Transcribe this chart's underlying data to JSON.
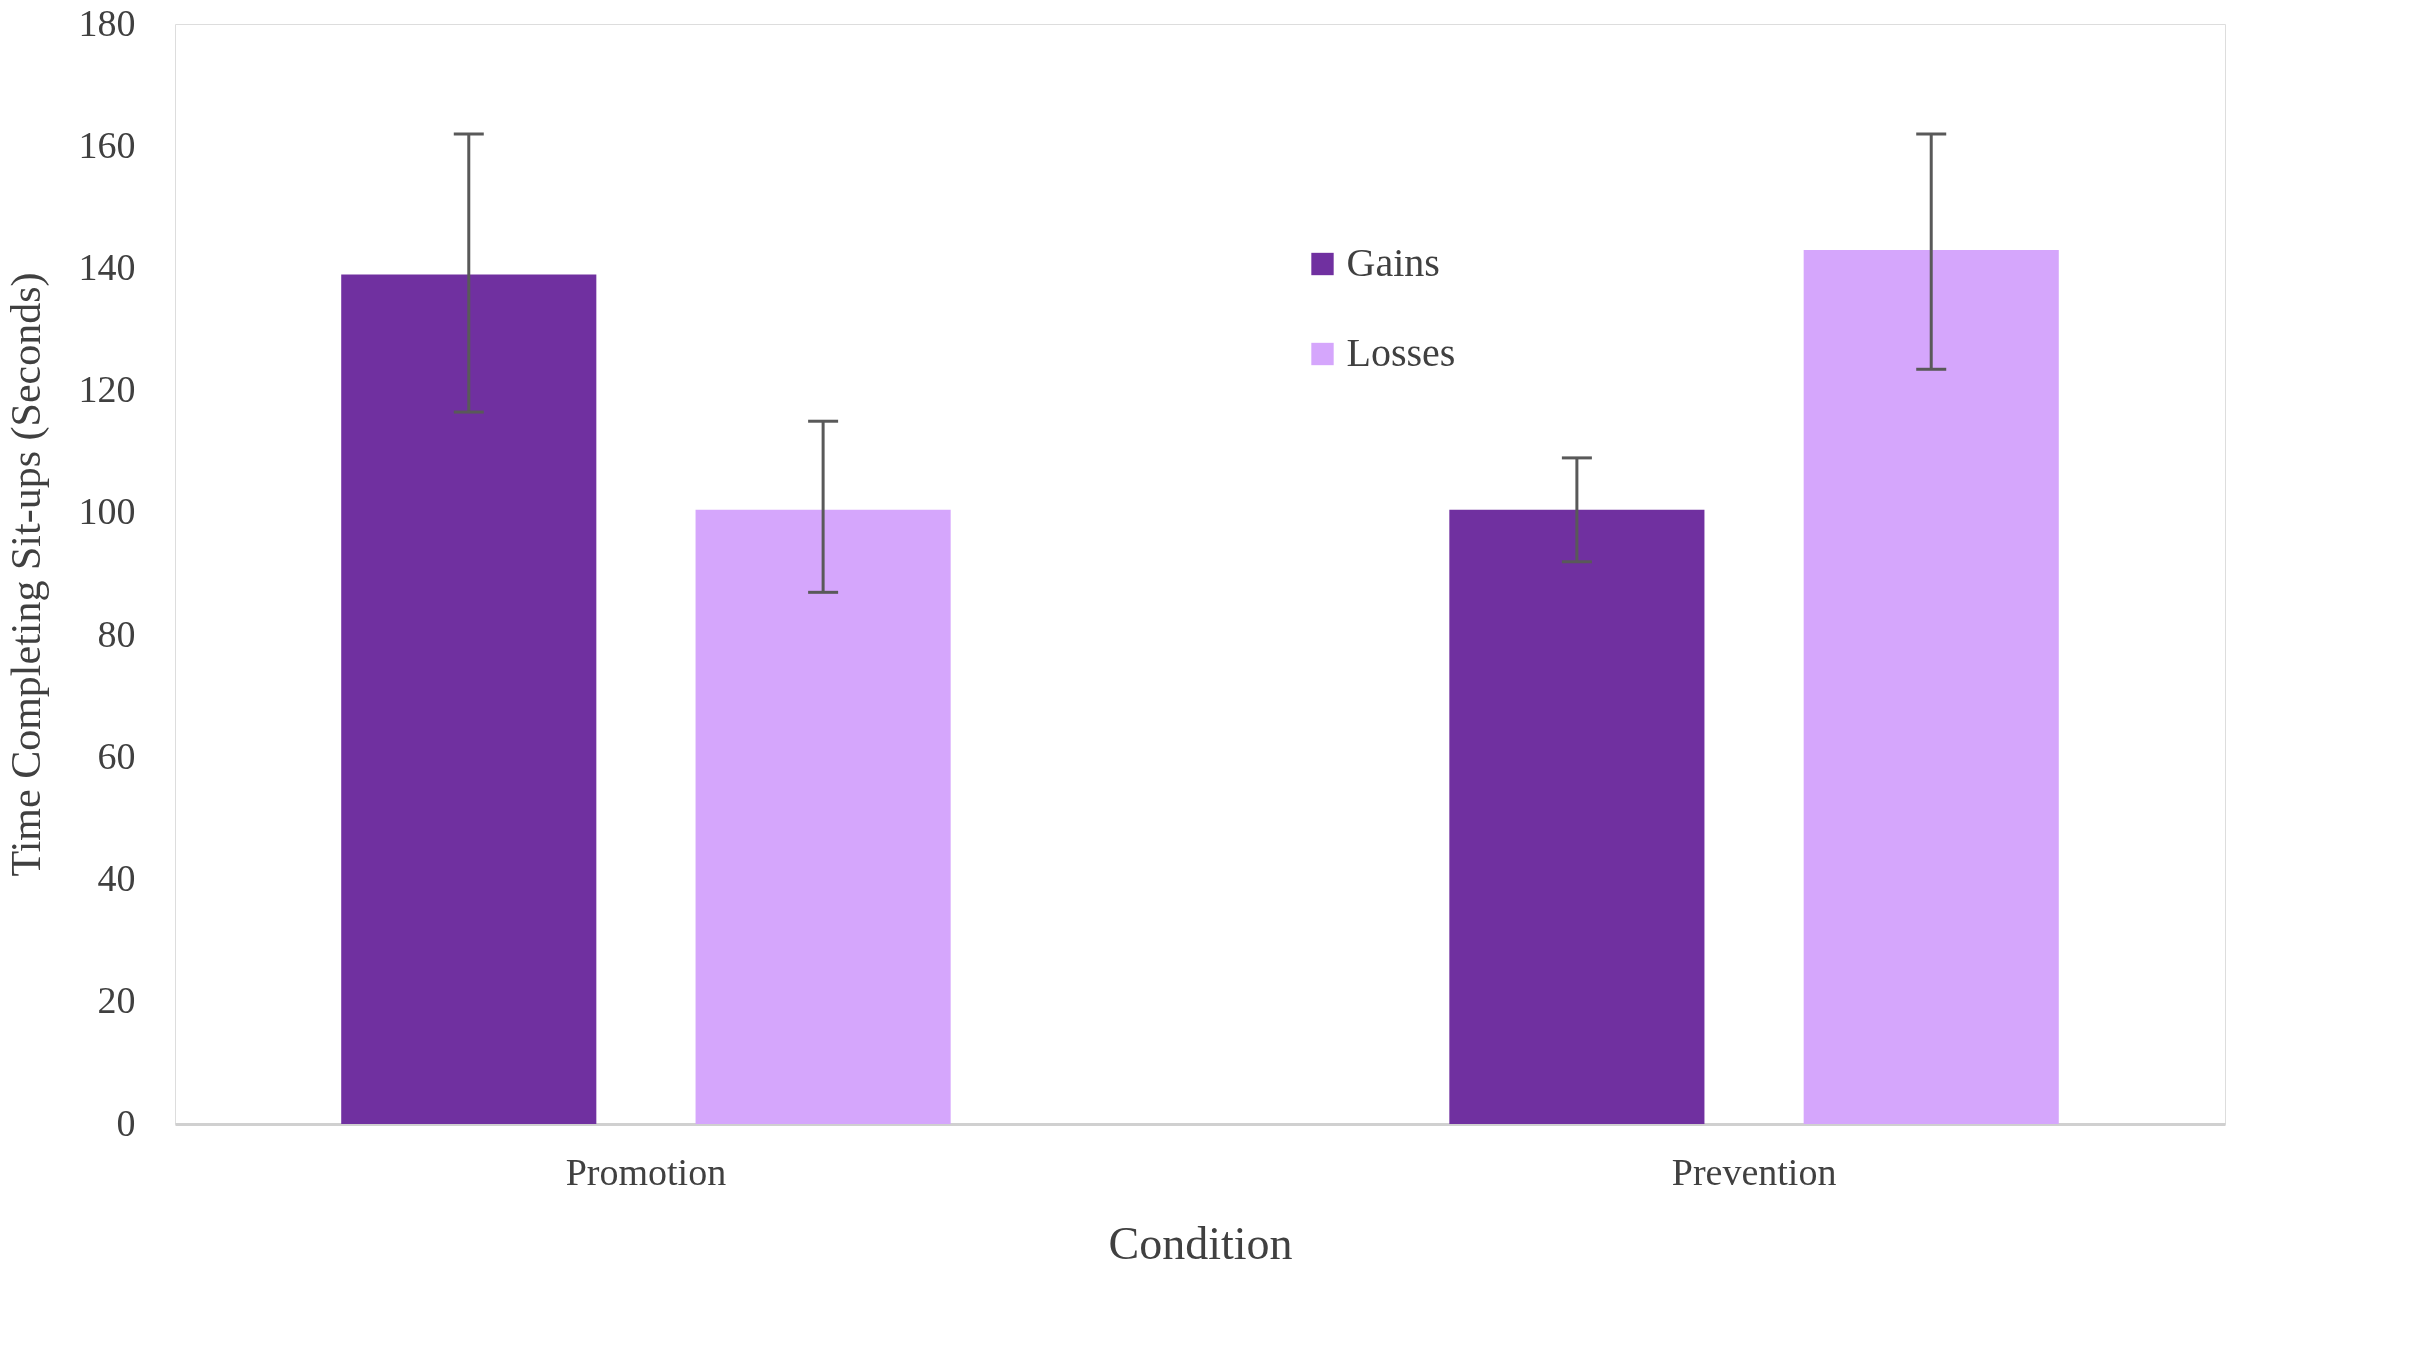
{
  "chart_data": {
    "type": "bar",
    "xlabel": "Condition",
    "ylabel": "Time Completing Sit-ups (Seconds)",
    "categories": [
      "Promotion",
      "Prevention"
    ],
    "series": [
      {
        "name": "Gains",
        "color": "#7030a0",
        "values": [
          139,
          100.5
        ],
        "errors": [
          [
            116.5,
            162
          ],
          [
            92,
            109
          ]
        ]
      },
      {
        "name": "Losses",
        "color": "#d5a6fc",
        "values": [
          100.5,
          143
        ],
        "errors": [
          [
            87,
            115
          ],
          [
            123.5,
            162
          ]
        ]
      }
    ],
    "ylim": [
      0,
      180
    ],
    "yticks": [
      0,
      20,
      40,
      60,
      80,
      100,
      120,
      140,
      160,
      180
    ],
    "grid": false,
    "legend": "top"
  }
}
